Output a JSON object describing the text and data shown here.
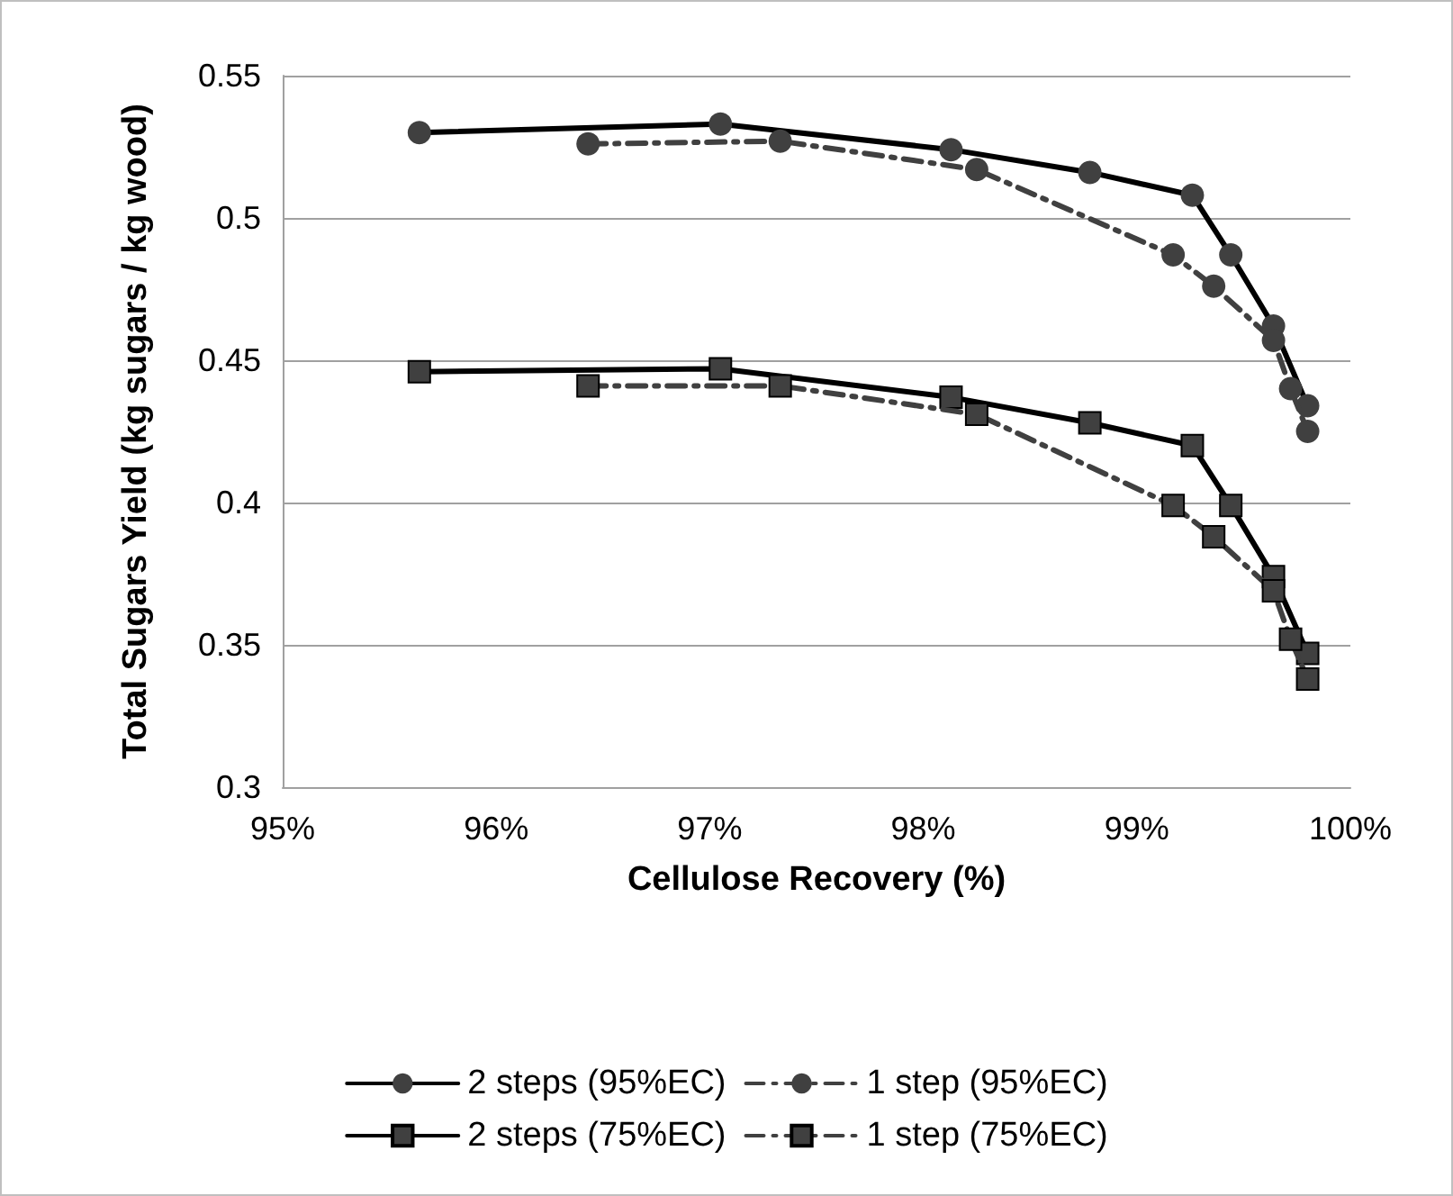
{
  "chart_data": {
    "type": "line",
    "xlabel": "Cellulose Recovery (%)",
    "ylabel": "Total Sugars Yield (kg sugars / kg wood)",
    "xlim": [
      95,
      100
    ],
    "xticks": [
      {
        "value": 95,
        "label": "95%"
      },
      {
        "value": 96,
        "label": "96%"
      },
      {
        "value": 97,
        "label": "97%"
      },
      {
        "value": 98,
        "label": "98%"
      },
      {
        "value": 99,
        "label": "99%"
      },
      {
        "value": 100,
        "label": "100%"
      }
    ],
    "ylim": [
      0.3,
      0.55
    ],
    "yticks": [
      0.3,
      0.35,
      0.4,
      0.45,
      0.5,
      0.55
    ],
    "grid": "y",
    "legend": "bottom",
    "series": [
      {
        "name": "2 steps (95%EC)",
        "color": "#000000",
        "marker": "circle",
        "line_style": "solid",
        "x": [
          95.64,
          97.05,
          98.13,
          98.78,
          99.26,
          99.44,
          99.64,
          99.8
        ],
        "values": [
          0.53,
          0.533,
          0.524,
          0.516,
          0.508,
          0.487,
          0.462,
          0.434
        ]
      },
      {
        "name": "1 step (95%EC)",
        "color": "#404040",
        "marker": "circle",
        "line_style": "dashed",
        "x": [
          96.43,
          97.33,
          98.25,
          99.17,
          99.36,
          99.64,
          99.72,
          99.8
        ],
        "values": [
          0.526,
          0.527,
          0.517,
          0.487,
          0.476,
          0.457,
          0.44,
          0.425
        ]
      },
      {
        "name": "2 steps (75%EC)",
        "color": "#000000",
        "marker": "square",
        "line_style": "solid",
        "x": [
          95.64,
          97.05,
          98.13,
          98.78,
          99.26,
          99.44,
          99.64,
          99.8
        ],
        "values": [
          0.446,
          0.447,
          0.437,
          0.428,
          0.42,
          0.399,
          0.374,
          0.347
        ]
      },
      {
        "name": "1 step (75%EC)",
        "color": "#404040",
        "marker": "square",
        "line_style": "dashed",
        "x": [
          96.43,
          97.33,
          98.25,
          99.17,
          99.36,
          99.64,
          99.72,
          99.8
        ],
        "values": [
          0.441,
          0.441,
          0.431,
          0.399,
          0.388,
          0.369,
          0.352,
          0.338
        ]
      }
    ]
  }
}
